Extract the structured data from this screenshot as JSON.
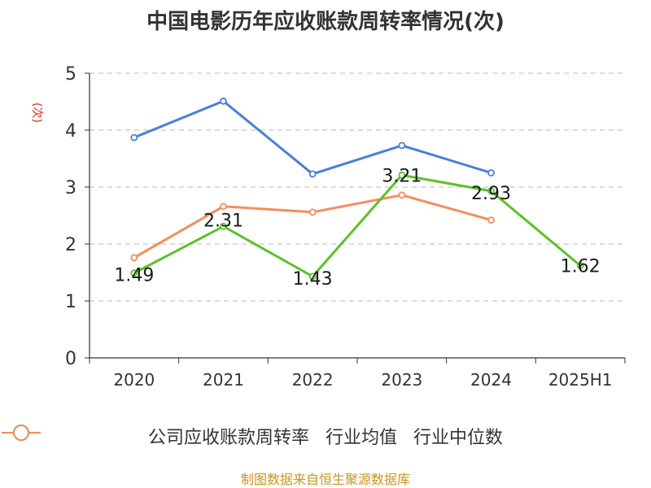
{
  "chart_data": {
    "type": "line",
    "title": "中国电影历年应收账款周转率情况(次)",
    "ylabel": "(次)",
    "categories": [
      "2020",
      "2021",
      "2022",
      "2023",
      "2024",
      "2025H1"
    ],
    "ylim": [
      0,
      5
    ],
    "yticks": [
      0,
      1,
      2,
      3,
      4,
      5
    ],
    "grid": true,
    "legend_position": "bottom",
    "series": [
      {
        "name": "公司应收账款周转率",
        "color": "#5ac229",
        "values": [
          1.49,
          2.31,
          1.43,
          3.21,
          2.93,
          1.62
        ],
        "labels": [
          "1.49",
          "2.31",
          "1.43",
          "3.21",
          "2.93",
          "1.62"
        ]
      },
      {
        "name": "行业均值",
        "color": "#4a7fd8",
        "values": [
          3.87,
          4.51,
          3.23,
          3.73,
          3.25,
          null
        ]
      },
      {
        "name": "行业中位数",
        "color": "#f58d5b",
        "values": [
          1.76,
          2.66,
          2.56,
          2.86,
          2.42,
          null
        ]
      }
    ]
  },
  "footer": {
    "source": "制图数据来自恒生聚源数据库"
  }
}
